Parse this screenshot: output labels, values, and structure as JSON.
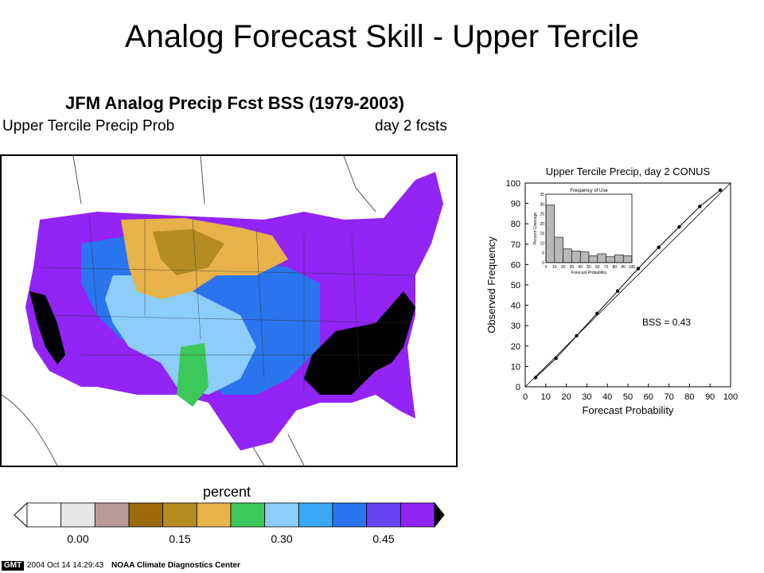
{
  "slide": {
    "title": "Analog Forecast Skill - Upper Tercile"
  },
  "map": {
    "title": "JFM Analog Precip Fcst BSS (1979-2003)",
    "subtitle_left": "Upper Tercile Precip Prob",
    "subtitle_right": "day 2 fcsts"
  },
  "colorbar": {
    "label": "percent",
    "colors": [
      "#ffffff",
      "#e6e6e6",
      "#b89a96",
      "#9c6a08",
      "#b48c22",
      "#e6b24a",
      "#3cc85a",
      "#8ccdfa",
      "#3aa8f4",
      "#2a74ee",
      "#6644f2",
      "#9224f6"
    ],
    "ticks": [
      "0.00",
      "0.15",
      "0.30",
      "0.45"
    ],
    "over_color": "#000000"
  },
  "footer": {
    "logo": "GMT",
    "timestamp": "2004 Oct 14 14:29:43",
    "center": "NOAA Climate Diagnostics Center"
  },
  "chart_data": [
    {
      "type": "line",
      "title": "Upper Tercile Precip, day 2 CONUS",
      "xlabel": "Forecast Probability",
      "ylabel": "Observed Frequency",
      "xlim": [
        0,
        100
      ],
      "ylim": [
        0,
        100
      ],
      "xticks": [
        "0",
        "10",
        "20",
        "30",
        "40",
        "50",
        "60",
        "70",
        "80",
        "90",
        "100"
      ],
      "yticks": [
        "0",
        "10",
        "20",
        "30",
        "40",
        "50",
        "60",
        "70",
        "80",
        "90",
        "100"
      ],
      "series": [
        {
          "x": [
            5,
            15,
            25,
            35,
            45,
            55,
            65,
            75,
            85,
            95
          ],
          "y": [
            4.5,
            14,
            25,
            36,
            47,
            58,
            68.5,
            78.5,
            88.5,
            96.5
          ]
        }
      ],
      "diagonal": true,
      "annotation": "BSS = 0.43",
      "grid": false
    },
    {
      "type": "bar",
      "title": "Frequency of Use",
      "xlabel": "Forecast Probability",
      "ylabel": "Percent Coverage",
      "categories": [
        "5",
        "15",
        "25",
        "35",
        "45",
        "55",
        "65",
        "75",
        "85",
        "95"
      ],
      "values": [
        29.5,
        13,
        7,
        6,
        5.5,
        3.5,
        4.5,
        3,
        4,
        3.5
      ],
      "ylim": [
        0,
        35
      ],
      "xticks": [
        "0",
        "10",
        "20",
        "30",
        "40",
        "50",
        "60",
        "70",
        "80",
        "90",
        "100"
      ],
      "yticks": [
        "0",
        "5",
        "10",
        "15",
        "20",
        "25",
        "30",
        "35"
      ]
    }
  ]
}
